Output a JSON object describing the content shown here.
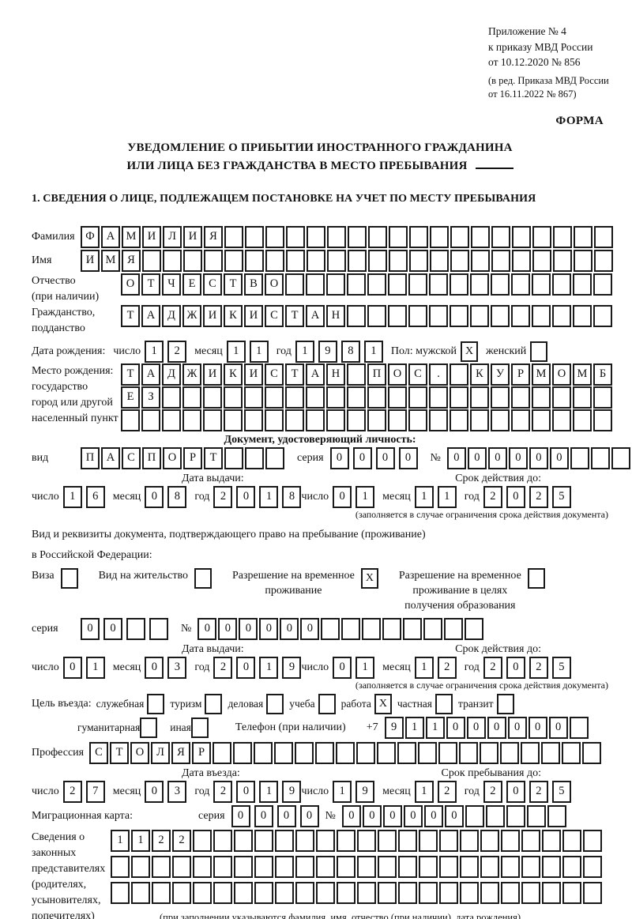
{
  "header": {
    "lines": [
      "Приложение № 4",
      "к приказу МВД России",
      "от 10.12.2020 № 856"
    ],
    "amendment_lines": [
      "(в ред. Приказа МВД России",
      "от 16.11.2022 № 867)"
    ],
    "forma_label": "ФОРМА"
  },
  "title": {
    "line1": "УВЕДОМЛЕНИЕ О ПРИБЫТИИ ИНОСТРАННОГО ГРАЖДАНИНА",
    "line2": "ИЛИ ЛИЦА БЕЗ ГРАЖДАНСТВА В МЕСТО ПРЕБЫВАНИЯ"
  },
  "section1_heading": "1. СВЕДЕНИЯ О ЛИЦЕ, ПОДЛЕЖАЩЕМ ПОСТАНОВКЕ НА УЧЕТ ПО МЕСТУ ПРЕБЫВАНИЯ",
  "date_labels": {
    "day": "число",
    "month": "месяц",
    "year": "год"
  },
  "person": {
    "surname": {
      "label": "Фамилия",
      "value": "ФАМИЛИЯ",
      "total": 26
    },
    "given_name": {
      "label": "Имя",
      "value": "ИМЯ",
      "total": 26
    },
    "patronymic": {
      "label_line1": "Отчество",
      "label_line2": "(при наличии)",
      "value": "ОТЧЕСТВО",
      "total": 24
    },
    "citizenship": {
      "label_line1": "Гражданство,",
      "label_line2": "подданство",
      "value": "ТАДЖИКИСТАН",
      "total": 24
    },
    "birth_date": {
      "label": "Дата рождения:",
      "day": {
        "value": "12"
      },
      "month": {
        "value": "11"
      },
      "year": {
        "value": "1981"
      }
    },
    "sex": {
      "label": "Пол: мужской",
      "male": "X",
      "female_label": "женский",
      "female": ""
    },
    "birth_place": {
      "label_lines": [
        "Место рождения:",
        "государство",
        "город или другой",
        "населенный пункт"
      ],
      "rows": [
        {
          "value": "ТАДЖИКИСТАН ПОС. КУРМОМБ",
          "total": 24
        },
        {
          "value": "ЕЗ",
          "total": 24
        },
        {
          "value": "",
          "total": 24
        }
      ]
    }
  },
  "identity_doc": {
    "heading": "Документ, удостоверяющий личность:",
    "type_label": "вид",
    "type": {
      "value": "ПАСПОРТ",
      "total": 10
    },
    "series_label": "серия",
    "series": {
      "value": "0000",
      "total": 4
    },
    "number_label": "№",
    "number": {
      "value": "000000",
      "total": 11
    },
    "issue_heading": "Дата выдачи:",
    "issue": {
      "day": {
        "value": "16"
      },
      "month": {
        "value": "08"
      },
      "year": {
        "value": "2018"
      }
    },
    "expiry_heading": "Срок действия до:",
    "expiry": {
      "day": {
        "value": "01"
      },
      "month": {
        "value": "11"
      },
      "year": {
        "value": "2025"
      }
    },
    "note": "(заполняется в случае ограничения срока действия документа)"
  },
  "residence_doc": {
    "intro_line1": "Вид и реквизиты документа, подтверждающего право на пребывание (проживание)",
    "intro_line2": "в Российской Федерации:",
    "options": [
      {
        "label_lines": [
          "Виза"
        ],
        "checked": ""
      },
      {
        "label_lines": [
          "Вид на жительство"
        ],
        "checked": ""
      },
      {
        "label_lines": [
          "Разрешение на временное",
          "проживание"
        ],
        "checked": "X"
      },
      {
        "label_lines": [
          "Разрешение на временное",
          "проживание в целях",
          "получения образования"
        ],
        "checked": ""
      }
    ],
    "series_label": "серия",
    "series": {
      "cells": [
        "0",
        "0",
        "",
        ""
      ]
    },
    "number_label": "№",
    "number": {
      "value": "000000",
      "total": 14
    },
    "issue_heading": "Дата выдачи:",
    "issue": {
      "day": {
        "value": "01"
      },
      "month": {
        "value": "03"
      },
      "year": {
        "value": "2019"
      }
    },
    "expiry_heading": "Срок действия до:",
    "expiry": {
      "day": {
        "value": "01"
      },
      "month": {
        "value": "12"
      },
      "year": {
        "value": "2025"
      }
    },
    "note": "(заполняется в случае ограничения срока действия документа)"
  },
  "visit": {
    "purpose_lead": "Цель въезда:",
    "purpose_options": [
      {
        "label": "служебная",
        "checked": ""
      },
      {
        "label": "туризм",
        "checked": ""
      },
      {
        "label": "деловая",
        "checked": ""
      },
      {
        "label": "учеба",
        "checked": ""
      },
      {
        "label": "работа",
        "checked": "X"
      },
      {
        "label": "частная",
        "checked": ""
      },
      {
        "label": "транзит",
        "checked": ""
      }
    ],
    "purpose_options2": [
      {
        "label": "гуманитарная",
        "checked": ""
      },
      {
        "label": "иная",
        "checked": ""
      }
    ],
    "phone_label": "Телефон (при наличии)",
    "phone_prefix": "+7",
    "phone": {
      "cells": [
        "9",
        "1",
        "1",
        "0",
        "0",
        "0",
        "0",
        "0",
        "0",
        ""
      ]
    },
    "profession": {
      "label": "Профессия",
      "value": "СТОЛЯР",
      "total": 25
    },
    "entry_heading": "Дата въезда:",
    "entry_date": {
      "day": {
        "value": "27"
      },
      "month": {
        "value": "03"
      },
      "year": {
        "value": "2019"
      }
    },
    "stay_heading": "Срок пребывания до:",
    "stay_until": {
      "day": {
        "value": "19"
      },
      "month": {
        "value": "12"
      },
      "year": {
        "value": "2025"
      }
    },
    "migration_card": {
      "label": "Миграционная карта:",
      "series_label": "серия",
      "series": {
        "value": "0000",
        "total": 4
      },
      "number_label": "№",
      "number": {
        "value": "000000",
        "total": 11
      }
    }
  },
  "representatives": {
    "label_lines": [
      "Сведения о",
      "законных",
      "представителях",
      "(родителях,",
      "усыновителях,",
      "попечителях)"
    ],
    "rows": [
      {
        "value": "1122",
        "total": 24
      },
      {
        "value": "",
        "total": 24
      },
      {
        "value": "",
        "total": 24
      }
    ],
    "note": "(при заполнении указываются фамилия, имя, отчество (при наличии), дата рождения)"
  }
}
